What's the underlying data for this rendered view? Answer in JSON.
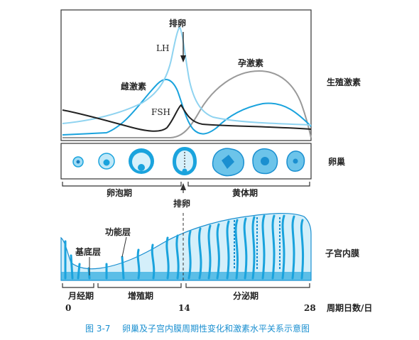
{
  "figure": {
    "caption_number": "图 3-7",
    "caption_text": "卵巢及子宫内膜周期性变化和激素水平关系示意图"
  },
  "colors": {
    "lh": "#8fd3f0",
    "estrogen": "#1aa3dd",
    "progesterone": "#9a9a9a",
    "fsh": "#222222",
    "tissue": "#1aa3dd"
  },
  "hormone_panel": {
    "side_label": "生殖激素",
    "ovulation_label": "排卵",
    "lh_label": "LH",
    "estrogen_label": "雌激素",
    "fsh_label": "FSH",
    "progesterone_label": "孕激素"
  },
  "ovary_panel": {
    "side_label": "卵巢",
    "follicular_phase": "卵泡期",
    "luteal_phase": "黄体期",
    "ovulation_label": "排卵"
  },
  "endometrium_panel": {
    "side_label": "子宫内膜",
    "functional_layer": "功能层",
    "basal_layer": "基底层"
  },
  "cycle_axis": {
    "menstrual": "月经期",
    "proliferative": "增殖期",
    "secretory": "分泌期",
    "day_0": "0",
    "day_14": "14",
    "day_28": "28",
    "axis_label": "周期日数/日"
  }
}
